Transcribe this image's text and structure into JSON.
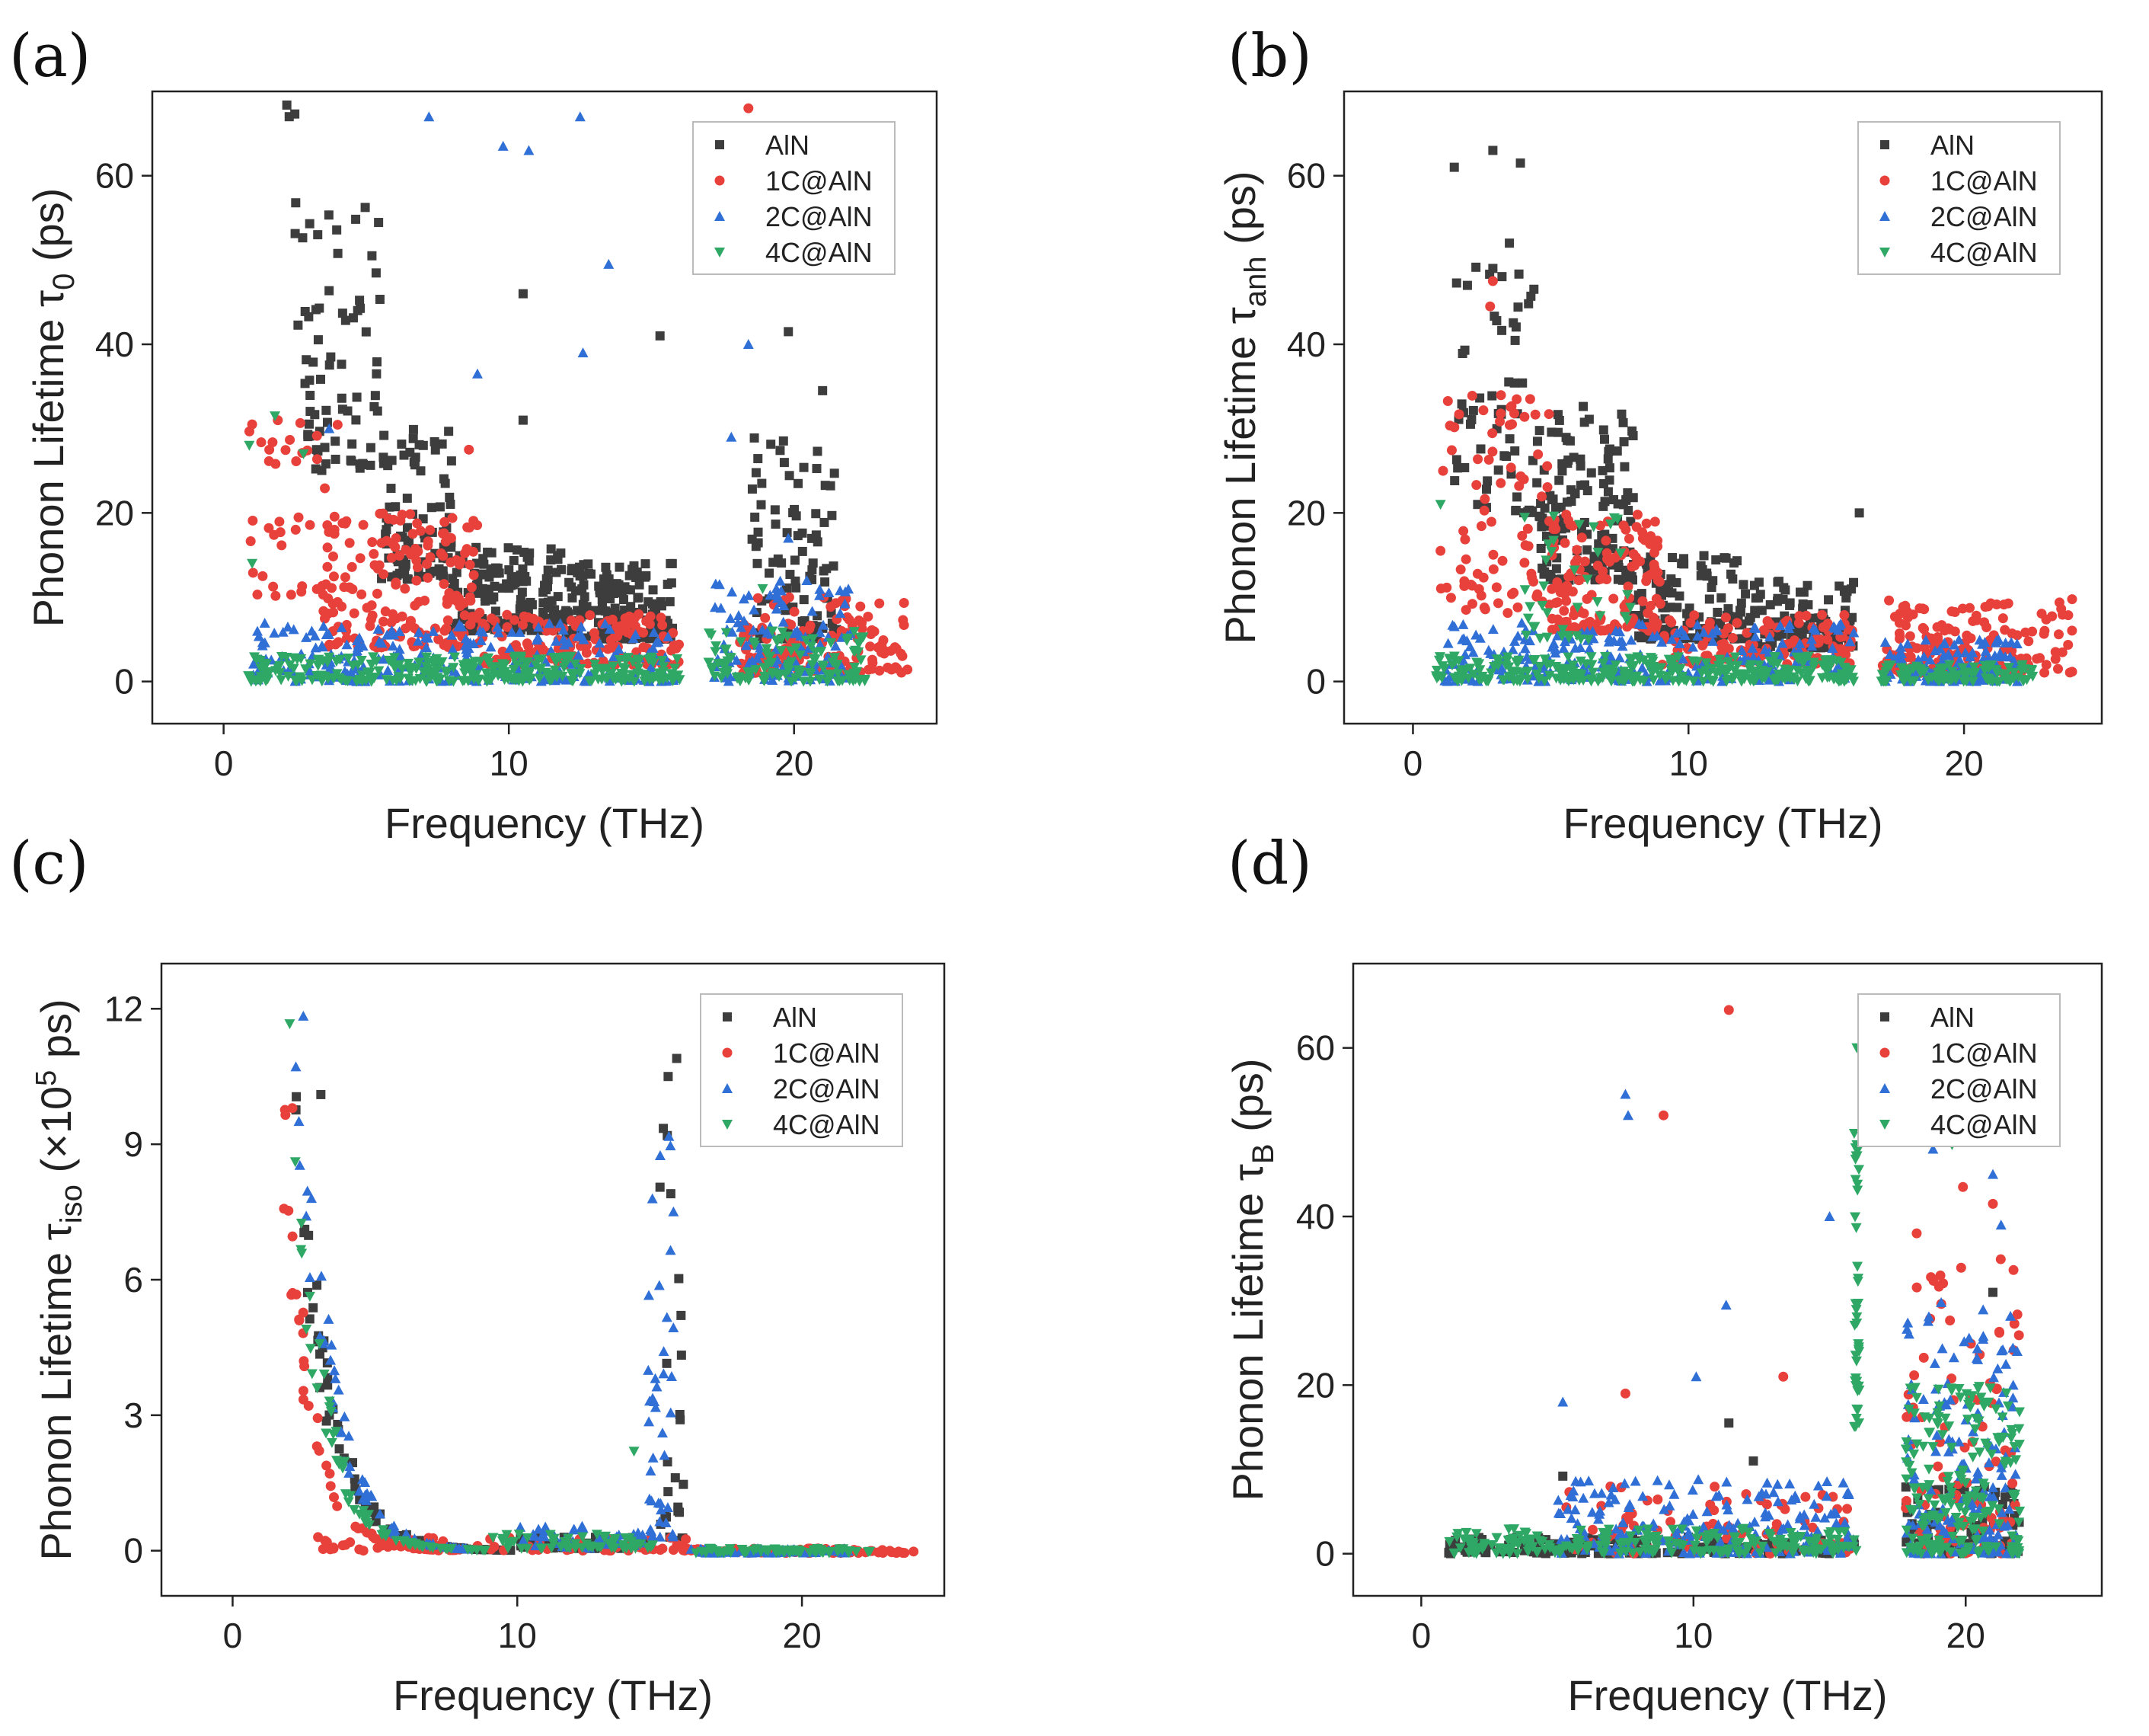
{
  "figure": {
    "panel_ids": [
      "a",
      "b",
      "c",
      "d"
    ]
  },
  "series_style": [
    {
      "name": "AlN",
      "color": "#3d3d3d",
      "marker": "square"
    },
    {
      "name": "1C@AlN",
      "color": "#e8403a",
      "marker": "circle"
    },
    {
      "name": "2C@AlN",
      "color": "#2f6fd6",
      "marker": "triangle-up"
    },
    {
      "name": "4C@AlN",
      "color": "#2fa866",
      "marker": "triangle-down"
    }
  ],
  "chart_data": [
    {
      "id": "a",
      "type": "scatter",
      "panel_label": "(a)",
      "xlabel": "Frequency (THz)",
      "ylabel": {
        "main": "Phonon Lifetime τ",
        "sub": "0",
        "unit": " (ps)"
      },
      "xlim": [
        -2.5,
        25
      ],
      "ylim": [
        -5,
        70
      ],
      "xticks": [
        0,
        10,
        20
      ],
      "yticks": [
        0,
        20,
        40,
        60
      ],
      "legend": [
        "AlN",
        "1C@AlN",
        "2C@AlN",
        "4C@AlN"
      ],
      "legend_position": "top-right",
      "series": [
        {
          "name": "AlN",
          "clusters": [
            {
              "x": [
                2.5,
                5.5
              ],
              "y": [
                25,
                57
              ],
              "n": 70
            },
            {
              "x": [
                5.5,
                8
              ],
              "y": [
                12,
                30
              ],
              "n": 90
            },
            {
              "x": [
                8,
                12
              ],
              "y": [
                6,
                16
              ],
              "n": 160
            },
            {
              "x": [
                12,
                15.8
              ],
              "y": [
                5,
                14
              ],
              "n": 160
            },
            {
              "x": [
                18.5,
                21.5
              ],
              "y": [
                5,
                30
              ],
              "n": 90
            },
            {
              "x": [
                1.2,
                2.6
              ],
              "y": [
                67,
                69
              ],
              "n": 3
            }
          ],
          "points": [
            [
              3.3,
              53
            ],
            [
              4.7,
              44
            ],
            [
              5.2,
              50.5
            ],
            [
              7,
              28
            ],
            [
              10.5,
              46
            ],
            [
              10.5,
              31
            ],
            [
              15.3,
              41
            ],
            [
              19.8,
              41.5
            ],
            [
              21,
              34.5
            ]
          ]
        },
        {
          "name": "1C@AlN",
          "clusters": [
            {
              "x": [
                0.9,
                4
              ],
              "y": [
                10,
                31
              ],
              "n": 40
            },
            {
              "x": [
                3.5,
                9
              ],
              "y": [
                4,
                20
              ],
              "n": 180
            },
            {
              "x": [
                9,
                16
              ],
              "y": [
                2,
                8
              ],
              "n": 150
            },
            {
              "x": [
                18,
                24
              ],
              "y": [
                1,
                10
              ],
              "n": 150
            }
          ],
          "points": [
            [
              1,
              30.5
            ],
            [
              1.9,
              31
            ],
            [
              8.6,
              27.5
            ],
            [
              18.4,
              68
            ]
          ]
        },
        {
          "name": "2C@AlN",
          "clusters": [
            {
              "x": [
                1,
                16
              ],
              "y": [
                0,
                7
              ],
              "n": 260
            },
            {
              "x": [
                17,
                22
              ],
              "y": [
                0,
                12
              ],
              "n": 120
            }
          ],
          "points": [
            [
              7.2,
              67
            ],
            [
              9.8,
              63.5
            ],
            [
              10.7,
              63
            ],
            [
              12.5,
              67
            ],
            [
              13.5,
              49.5
            ],
            [
              12.6,
              39
            ],
            [
              8.9,
              36.5
            ],
            [
              18.4,
              40
            ],
            [
              17.8,
              29
            ],
            [
              19.8,
              17
            ],
            [
              3.7,
              30
            ]
          ]
        },
        {
          "name": "4C@AlN",
          "clusters": [
            {
              "x": [
                0.8,
                16
              ],
              "y": [
                0,
                3
              ],
              "n": 300
            },
            {
              "x": [
                17,
                22.5
              ],
              "y": [
                0,
                6
              ],
              "n": 120
            }
          ],
          "points": [
            [
              0.9,
              28
            ],
            [
              1,
              14
            ],
            [
              1.8,
              31.5
            ],
            [
              2.8,
              27
            ],
            [
              18.9,
              11
            ]
          ]
        }
      ]
    },
    {
      "id": "b",
      "type": "scatter",
      "panel_label": "(b)",
      "xlabel": "Frequency (THz)",
      "ylabel": {
        "main": "Phonon Lifetime τ",
        "sub": "anh",
        "unit": " (ps)"
      },
      "xlim": [
        -2.5,
        25
      ],
      "ylim": [
        -5,
        70
      ],
      "xticks": [
        0,
        10,
        20
      ],
      "yticks": [
        0,
        20,
        40,
        60
      ],
      "legend": [
        "AlN",
        "1C@AlN",
        "2C@AlN",
        "4C@AlN"
      ],
      "legend_position": "top-right",
      "series": [
        {
          "name": "AlN",
          "clusters": [
            {
              "x": [
                1.5,
                4.5
              ],
              "y": [
                20,
                50
              ],
              "n": 60
            },
            {
              "x": [
                4.5,
                8
              ],
              "y": [
                12,
                33
              ],
              "n": 140
            },
            {
              "x": [
                8,
                12
              ],
              "y": [
                5,
                15
              ],
              "n": 120
            },
            {
              "x": [
                12,
                16
              ],
              "y": [
                4,
                12
              ],
              "n": 120
            }
          ],
          "points": [
            [
              1.5,
              61
            ],
            [
              2.9,
              63
            ],
            [
              3.9,
              61.5
            ],
            [
              3.5,
              52
            ],
            [
              2.9,
              49
            ],
            [
              16.2,
              20
            ]
          ]
        },
        {
          "name": "1C@AlN",
          "clusters": [
            {
              "x": [
                1,
                5
              ],
              "y": [
                8,
                35
              ],
              "n": 80
            },
            {
              "x": [
                5,
                9
              ],
              "y": [
                6,
                20
              ],
              "n": 150
            },
            {
              "x": [
                9,
                16
              ],
              "y": [
                2,
                8
              ],
              "n": 130
            },
            {
              "x": [
                17,
                24
              ],
              "y": [
                1,
                10
              ],
              "n": 180
            }
          ],
          "points": [
            [
              2.9,
              47.5
            ],
            [
              2.8,
              44.5
            ],
            [
              1,
              15.5
            ]
          ]
        },
        {
          "name": "2C@AlN",
          "clusters": [
            {
              "x": [
                1,
                16
              ],
              "y": [
                0,
                7
              ],
              "n": 260
            },
            {
              "x": [
                17,
                22
              ],
              "y": [
                0,
                5
              ],
              "n": 120
            }
          ],
          "points": []
        },
        {
          "name": "4C@AlN",
          "clusters": [
            {
              "x": [
                0.8,
                16
              ],
              "y": [
                0,
                3
              ],
              "n": 300
            },
            {
              "x": [
                17,
                22.5
              ],
              "y": [
                0,
                2
              ],
              "n": 100
            },
            {
              "x": [
                4,
                8
              ],
              "y": [
                5,
                20
              ],
              "n": 40
            }
          ],
          "points": [
            [
              1,
              21
            ]
          ]
        }
      ]
    },
    {
      "id": "c",
      "type": "scatter",
      "panel_label": "(c)",
      "xlabel": "Frequency (THz)",
      "ylabel": {
        "main": "Phonon Lifetime τ",
        "sub": "iso",
        "unit": " (×10",
        "sup": "5",
        "unit2": " ps)"
      },
      "xlim": [
        -2.5,
        25
      ],
      "ylim": [
        -1,
        13
      ],
      "xticks": [
        0,
        10,
        20
      ],
      "yticks": [
        0,
        3,
        6,
        9,
        12
      ],
      "legend": [
        "AlN",
        "1C@AlN",
        "2C@AlN",
        "4C@AlN"
      ],
      "legend_position": "top-right",
      "series": [
        {
          "name": "AlN",
          "decay": {
            "x": [
              2.2,
              10
            ],
            "y0": 10.0,
            "k": 0.9,
            "n": 70
          },
          "clusters": [
            {
              "x": [
                15,
                15.9
              ],
              "y": [
                0.2,
                11
              ],
              "n": 25
            },
            {
              "x": [
                10,
                14.5
              ],
              "y": [
                0.05,
                0.3
              ],
              "n": 50
            }
          ],
          "points": [
            [
              3.1,
              10.1
            ],
            [
              15.6,
              10.9
            ],
            [
              15.3,
              10.5
            ]
          ]
        },
        {
          "name": "1C@AlN",
          "decay": {
            "x": [
              1.8,
              8
            ],
            "y0": 9.5,
            "k": 1.1,
            "n": 60
          },
          "clusters": [
            {
              "x": [
                3,
                16
              ],
              "y": [
                0,
                0.3
              ],
              "n": 80
            },
            {
              "x": [
                16,
                24
              ],
              "y": [
                -0.05,
                0.05
              ],
              "n": 70
            }
          ],
          "points": [
            [
              2.1,
              9.8
            ],
            [
              2.5,
              4.2
            ],
            [
              3,
              0.3
            ]
          ]
        },
        {
          "name": "2C@AlN",
          "decay": {
            "x": [
              2.2,
              9
            ],
            "y0": 13,
            "k": 0.95,
            "n": 70
          },
          "clusters": [
            {
              "x": [
                14.6,
                15.5
              ],
              "y": [
                0.3,
                9.5
              ],
              "n": 40
            },
            {
              "x": [
                10,
                14.5
              ],
              "y": [
                0.05,
                0.6
              ],
              "n": 40
            },
            {
              "x": [
                16,
                22
              ],
              "y": [
                -0.05,
                0.05
              ],
              "n": 60
            }
          ],
          "points": []
        },
        {
          "name": "4C@AlN",
          "decay": {
            "x": [
              1.9,
              9
            ],
            "y0": 12.6,
            "k": 1.0,
            "n": 70
          },
          "clusters": [
            {
              "x": [
                9,
                15
              ],
              "y": [
                0.05,
                0.4
              ],
              "n": 60
            },
            {
              "x": [
                16,
                22.5
              ],
              "y": [
                -0.05,
                0.05
              ],
              "n": 60
            }
          ],
          "points": [
            [
              14.1,
              2.2
            ]
          ]
        }
      ]
    },
    {
      "id": "d",
      "type": "scatter",
      "panel_label": "(d)",
      "xlabel": "Frequency (THz)",
      "ylabel": {
        "main": "Phonon Lifetime τ",
        "sub": "B",
        "unit": "  (ps)"
      },
      "xlim": [
        -2.5,
        25
      ],
      "ylim": [
        -5,
        70
      ],
      "xticks": [
        0,
        10,
        20
      ],
      "yticks": [
        0,
        20,
        40,
        60
      ],
      "legend": [
        "AlN",
        "1C@AlN",
        "2C@AlN",
        "4C@AlN"
      ],
      "legend_position": "top-right",
      "series": [
        {
          "name": "AlN",
          "clusters": [
            {
              "x": [
                1,
                16
              ],
              "y": [
                0,
                2
              ],
              "n": 150
            },
            {
              "x": [
                17.8,
                22
              ],
              "y": [
                0,
                8
              ],
              "n": 80
            }
          ],
          "points": [
            [
              5.2,
              9.2
            ],
            [
              11.3,
              15.5
            ],
            [
              12.2,
              11
            ],
            [
              21,
              31
            ]
          ]
        },
        {
          "name": "1C@AlN",
          "clusters": [
            {
              "x": [
                5,
                16
              ],
              "y": [
                0,
                8
              ],
              "n": 80
            },
            {
              "x": [
                17.8,
                22
              ],
              "y": [
                0,
                35
              ],
              "n": 100
            }
          ],
          "points": [
            [
              11.3,
              64.5
            ],
            [
              8.9,
              52
            ],
            [
              13.3,
              21
            ],
            [
              7.5,
              19
            ],
            [
              19.9,
              43.5
            ],
            [
              21,
              41.5
            ],
            [
              18.2,
              38
            ]
          ]
        },
        {
          "name": "2C@AlN",
          "clusters": [
            {
              "x": [
                5,
                16
              ],
              "y": [
                0,
                9
              ],
              "n": 200
            },
            {
              "x": [
                17.8,
                22
              ],
              "y": [
                0,
                30
              ],
              "n": 160
            }
          ],
          "points": [
            [
              7.5,
              54.5
            ],
            [
              7.6,
              52
            ],
            [
              11.2,
              29.5
            ],
            [
              5.2,
              18
            ],
            [
              10.1,
              21
            ],
            [
              15,
              40
            ],
            [
              21,
              45
            ],
            [
              21.3,
              39
            ],
            [
              18.8,
              48
            ]
          ]
        },
        {
          "name": "4C@AlN",
          "clusters": [
            {
              "x": [
                1,
                16
              ],
              "y": [
                0,
                3
              ],
              "n": 220
            },
            {
              "x": [
                15.9,
                16.1
              ],
              "y": [
                15,
                50
              ],
              "n": 40
            },
            {
              "x": [
                17.8,
                22
              ],
              "y": [
                0,
                20
              ],
              "n": 200
            }
          ],
          "points": [
            [
              16,
              60
            ],
            [
              16,
              48.5
            ],
            [
              19.5,
              48.5
            ]
          ]
        }
      ]
    }
  ]
}
